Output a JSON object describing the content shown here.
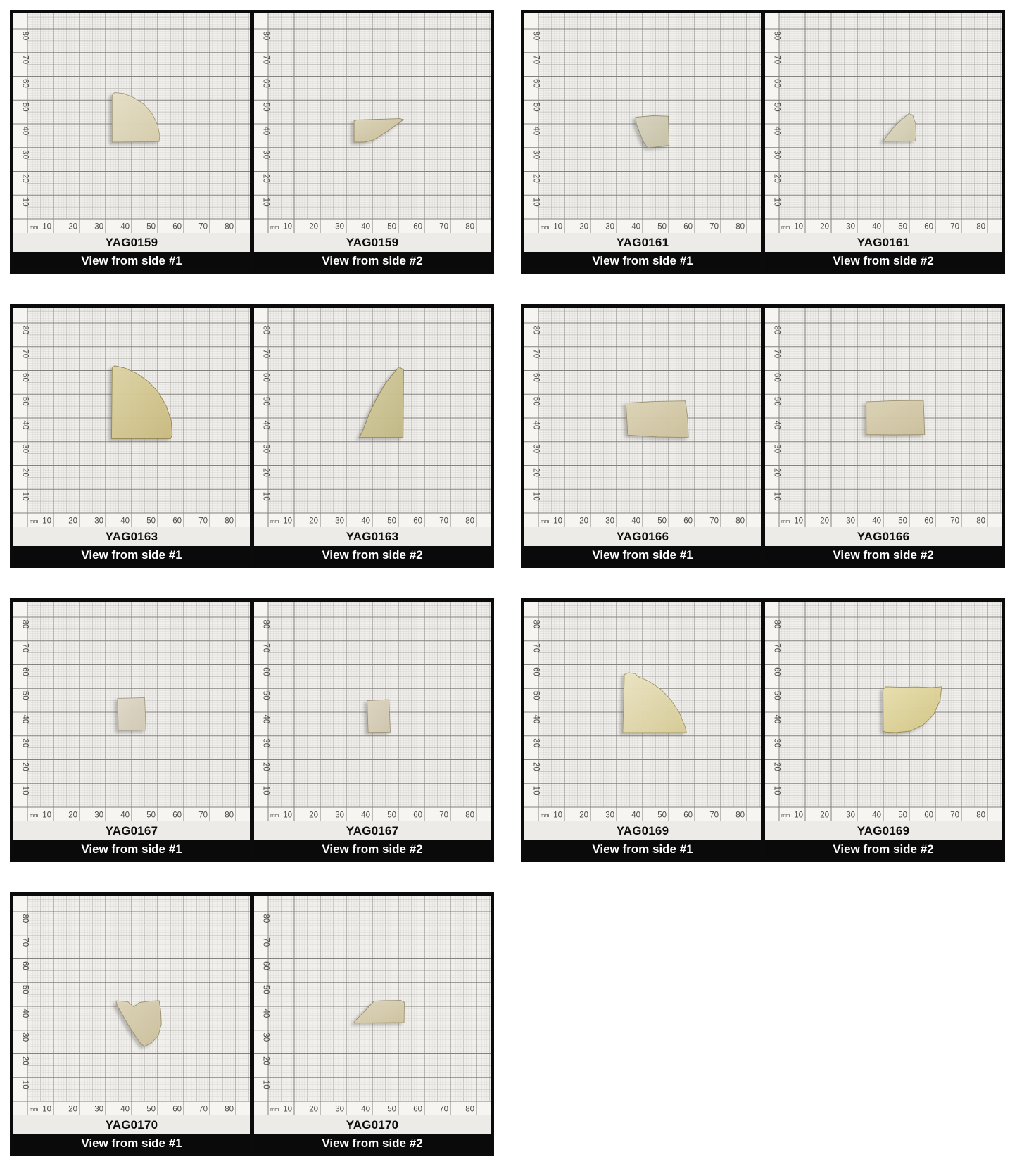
{
  "figure": {
    "description": "Photo documentation sheet of YAG crystal fragments on millimeter graph paper, two views per sample"
  },
  "graph": {
    "unit": "mm",
    "ticks": [
      10,
      20,
      30,
      40,
      50,
      60,
      70,
      80
    ]
  },
  "colors": {
    "paper": "#f1f0ed",
    "strip": "#f6f5f2",
    "fine_line": "#d7d5d1",
    "med_line": "#bcbab6",
    "major_line": "#83817d",
    "tick_text": "#4e4c48",
    "label_bg": "#edebe8",
    "label_text": "#0d0d0d",
    "bar_bg": "#0a0a0a",
    "bar_text": "#ffffff",
    "panel_border": "#0b0b0b"
  },
  "panels": [
    {
      "id": "YAG0159",
      "views": [
        {
          "label": "View from side #1",
          "crystal": {
            "fill": "#d7cdab",
            "light": "#e6e0c8",
            "stroke": "#a2987a",
            "points": [
              [
                32.5,
                32.3
              ],
              [
                32.5,
                52.0
              ],
              [
                33.5,
                53.2
              ],
              [
                37.0,
                52.8
              ],
              [
                41.0,
                51.0
              ],
              [
                45.0,
                48.0
              ],
              [
                48.0,
                44.0
              ],
              [
                50.0,
                39.5
              ],
              [
                50.8,
                35.0
              ],
              [
                50.5,
                32.5
              ]
            ]
          }
        },
        {
          "label": "View from side #2",
          "crystal": {
            "fill": "#c7bc95",
            "light": "#ddd5ba",
            "stroke": "#978c68",
            "points": [
              [
                33.0,
                32.3
              ],
              [
                33.0,
                41.3
              ],
              [
                34.0,
                41.6
              ],
              [
                50.5,
                42.2
              ],
              [
                52.0,
                41.8
              ],
              [
                46.0,
                37.0
              ],
              [
                40.5,
                33.2
              ],
              [
                37.0,
                32.3
              ]
            ]
          }
        }
      ]
    },
    {
      "id": "YAG0161",
      "views": [
        {
          "label": "View from side #1",
          "crystal": {
            "fill": "#c6c1a6",
            "light": "#d8d4bf",
            "stroke": "#94907a",
            "points": [
              [
                37.3,
                42.8
              ],
              [
                44.0,
                43.4
              ],
              [
                49.8,
                43.2
              ],
              [
                50.2,
                31.0
              ],
              [
                45.0,
                30.2
              ],
              [
                41.8,
                30.0
              ],
              [
                40.3,
                32.5
              ],
              [
                38.8,
                36.5
              ],
              [
                37.6,
                40.0
              ]
            ]
          }
        },
        {
          "label": "View from side #2",
          "crystal": {
            "fill": "#cfc9ac",
            "light": "#e0dbc4",
            "stroke": "#9a947a",
            "points": [
              [
                39.8,
                32.6
              ],
              [
                41.5,
                35.0
              ],
              [
                44.0,
                38.5
              ],
              [
                47.0,
                41.8
              ],
              [
                49.8,
                44.3
              ],
              [
                51.3,
                43.7
              ],
              [
                52.4,
                40.0
              ],
              [
                52.6,
                35.0
              ],
              [
                52.3,
                32.8
              ]
            ]
          }
        }
      ]
    },
    {
      "id": "YAG0163",
      "views": [
        {
          "label": "View from side #1",
          "crystal": {
            "fill": "#c9ba7e",
            "light": "#ded4a6",
            "stroke": "#93864f",
            "points": [
              [
                32.3,
                31.3
              ],
              [
                32.5,
                61.0
              ],
              [
                33.5,
                62.0
              ],
              [
                37.5,
                61.0
              ],
              [
                42.0,
                58.8
              ],
              [
                46.5,
                55.3
              ],
              [
                50.3,
                50.8
              ],
              [
                53.2,
                45.3
              ],
              [
                55.2,
                39.0
              ],
              [
                55.6,
                33.0
              ],
              [
                55.0,
                31.3
              ]
            ]
          }
        },
        {
          "label": "View from side #2",
          "crystal": {
            "fill": "#c2b884",
            "light": "#d7cfa4",
            "stroke": "#8e8455",
            "points": [
              [
                35.0,
                31.8
              ],
              [
                51.8,
                31.8
              ],
              [
                52.0,
                60.3
              ],
              [
                50.3,
                61.5
              ],
              [
                48.5,
                59.3
              ],
              [
                45.0,
                54.5
              ],
              [
                41.5,
                48.0
              ],
              [
                38.5,
                41.0
              ],
              [
                36.3,
                34.5
              ]
            ]
          }
        }
      ]
    },
    {
      "id": "YAG0166",
      "views": [
        {
          "label": "View from side #1",
          "crystal": {
            "fill": "#cdc19c",
            "light": "#ddd4b8",
            "stroke": "#9c9170",
            "points": [
              [
                33.6,
                46.3
              ],
              [
                45.0,
                47.0
              ],
              [
                56.4,
                47.2
              ],
              [
                57.3,
                40.0
              ],
              [
                57.6,
                31.8
              ],
              [
                46.0,
                32.0
              ],
              [
                34.3,
                32.8
              ]
            ]
          }
        },
        {
          "label": "View from side #2",
          "crystal": {
            "fill": "#ccc09c",
            "light": "#dcd3b6",
            "stroke": "#9c9170",
            "points": [
              [
                33.4,
                46.8
              ],
              [
                44.0,
                47.3
              ],
              [
                55.4,
                47.4
              ],
              [
                55.9,
                33.0
              ],
              [
                44.0,
                32.9
              ],
              [
                33.5,
                33.0
              ]
            ]
          }
        }
      ]
    },
    {
      "id": "YAG0167",
      "views": [
        {
          "label": "View from side #1",
          "crystal": {
            "fill": "#d2c9b3",
            "light": "#e1dacb",
            "stroke": "#a29983",
            "points": [
              [
                34.6,
                45.8
              ],
              [
                45.0,
                46.1
              ],
              [
                45.5,
                32.4
              ],
              [
                34.9,
                32.3
              ]
            ]
          }
        },
        {
          "label": "View from side #2",
          "crystal": {
            "fill": "#cfc5ae",
            "light": "#ded6c2",
            "stroke": "#9f957d",
            "points": [
              [
                38.0,
                44.9
              ],
              [
                46.4,
                45.3
              ],
              [
                46.9,
                31.6
              ],
              [
                38.4,
                31.5
              ]
            ]
          }
        }
      ]
    },
    {
      "id": "YAG0169",
      "views": [
        {
          "label": "View from side #1",
          "crystal": {
            "fill": "#d6cb96",
            "light": "#ece5c3",
            "stroke": "#a2976a",
            "points": [
              [
                32.4,
                31.4
              ],
              [
                33.0,
                55.8
              ],
              [
                34.5,
                56.6
              ],
              [
                37.2,
                56.2
              ],
              [
                38.2,
                55.0
              ],
              [
                42.5,
                53.0
              ],
              [
                47.0,
                49.6
              ],
              [
                51.0,
                45.0
              ],
              [
                54.2,
                39.6
              ],
              [
                56.3,
                34.0
              ],
              [
                56.8,
                31.4
              ]
            ]
          }
        },
        {
          "label": "View from side #2",
          "crystal": {
            "fill": "#d2c583",
            "light": "#e9e0af",
            "stroke": "#9b8e55",
            "points": [
              [
                40.0,
                32.0
              ],
              [
                39.9,
                49.6
              ],
              [
                41.0,
                50.7
              ],
              [
                47.0,
                50.5
              ],
              [
                53.0,
                50.6
              ],
              [
                58.5,
                50.4
              ],
              [
                62.4,
                50.7
              ],
              [
                61.8,
                45.0
              ],
              [
                59.3,
                39.0
              ],
              [
                55.3,
                34.6
              ],
              [
                50.3,
                32.0
              ],
              [
                44.8,
                31.4
              ],
              [
                41.0,
                31.6
              ]
            ]
          }
        }
      ]
    },
    {
      "id": "YAG0170",
      "views": [
        {
          "label": "View from side #1",
          "crystal": {
            "fill": "#ccc09b",
            "light": "#dcd3b8",
            "stroke": "#9a8f6c",
            "points": [
              [
                34.0,
                42.3
              ],
              [
                38.5,
                42.0
              ],
              [
                40.8,
                39.8
              ],
              [
                43.0,
                41.6
              ],
              [
                47.0,
                42.2
              ],
              [
                50.6,
                42.4
              ],
              [
                51.2,
                38.0
              ],
              [
                51.4,
                32.5
              ],
              [
                50.3,
                27.8
              ],
              [
                47.6,
                24.6
              ],
              [
                44.8,
                23.1
              ],
              [
                43.2,
                24.8
              ],
              [
                41.0,
                28.2
              ],
              [
                38.6,
                32.4
              ],
              [
                36.2,
                37.0
              ],
              [
                34.4,
                40.4
              ]
            ]
          }
        },
        {
          "label": "View from side #2",
          "crystal": {
            "fill": "#cec4a1",
            "light": "#ded6bc",
            "stroke": "#9c9272",
            "points": [
              [
                33.0,
                33.0
              ],
              [
                52.2,
                33.2
              ],
              [
                52.3,
                41.7
              ],
              [
                51.0,
                42.5
              ],
              [
                44.0,
                42.4
              ],
              [
                40.7,
                42.2
              ],
              [
                36.5,
                37.4
              ],
              [
                33.4,
                33.9
              ]
            ]
          }
        }
      ]
    }
  ]
}
